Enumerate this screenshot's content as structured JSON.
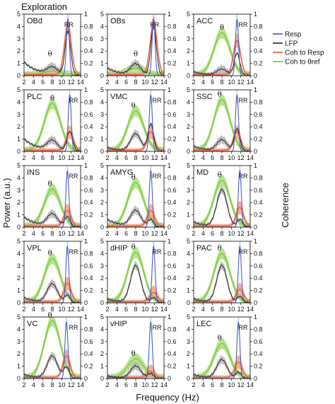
{
  "figure_title": "Exploration",
  "x_label": "Frequency (Hz)",
  "y_left_label": "Power (a.u.)",
  "y_right_label": "Coherence",
  "legend": [
    "Resp",
    "LFP",
    "Coh to Resp",
    "Coh to θref"
  ],
  "colors": {
    "resp": "#3f51c8",
    "lfp": "#222222",
    "lfp_band": "#b0b0b0",
    "coh_resp": "#e8552e",
    "coh_resp_band": "#f4a082",
    "coh_theta": "#6cc321",
    "coh_theta_band": "#b6e38e",
    "resp_band": "#a9b8e8"
  },
  "labels": {
    "theta": "θ",
    "rr": "RR"
  },
  "chart_data": {
    "type": "line",
    "xlim": [
      2,
      14
    ],
    "x_ticks": [
      "2",
      "4",
      "6",
      "8",
      "10",
      "12",
      "14"
    ],
    "power_ylim": [
      0,
      5
    ],
    "power_ticks": [
      "0",
      "1",
      "2",
      "3",
      "4",
      "5"
    ],
    "coherence_ylim": [
      0,
      1
    ],
    "coherence_ticks": [
      "0",
      "0.2",
      "0.4",
      "0.6",
      "0.8",
      "1"
    ],
    "panels": [
      {
        "name": "OBd",
        "resp_peak": 11.3,
        "lfp_theta": 0.6,
        "lfp_rr": 3.5,
        "coh_resp": 0.8,
        "coh_theta": 0.05,
        "theta_x": 7.5,
        "rr_x": 11.5,
        "lfp_low": 1.1
      },
      {
        "name": "OBs",
        "resp_peak": 11.8,
        "lfp_theta": 0.9,
        "lfp_rr": 3.9,
        "coh_resp": 0.85,
        "coh_theta": 0.1,
        "theta_x": 8,
        "rr_x": 12,
        "lfp_low": 0.6
      },
      {
        "name": "ACC",
        "resp_peak": 11.2,
        "lfp_theta": 0.5,
        "lfp_rr": 1.8,
        "coh_resp": 0.55,
        "coh_theta": 0.68,
        "theta_x": 8,
        "rr_x": 12.5,
        "lfp_low": 0.3
      },
      {
        "name": "PLC",
        "resp_peak": 11.7,
        "lfp_theta": 0.8,
        "lfp_rr": 1.6,
        "coh_resp": 0.3,
        "coh_theta": 0.76,
        "theta_x": 8,
        "rr_x": 12.5,
        "lfp_low": 1.0
      },
      {
        "name": "VMC",
        "resp_peak": 11.2,
        "lfp_theta": 1.4,
        "lfp_rr": 2.2,
        "coh_resp": 0.3,
        "coh_theta": 0.64,
        "theta_x": 7.5,
        "rr_x": 12.5,
        "lfp_low": 0.3
      },
      {
        "name": "SSC",
        "resp_peak": 11.2,
        "lfp_theta": 0.9,
        "lfp_rr": 1.8,
        "coh_resp": 0.3,
        "coh_theta": 0.82,
        "theta_x": 7.5,
        "rr_x": 12.5,
        "lfp_low": 0.4
      },
      {
        "name": "INS",
        "resp_peak": 11.2,
        "lfp_theta": 1.0,
        "lfp_rr": 0.8,
        "coh_resp": 0.25,
        "coh_theta": 0.6,
        "theta_x": 7.5,
        "rr_x": 12.5,
        "lfp_low": 0.8
      },
      {
        "name": "AMYG",
        "resp_peak": 11.2,
        "lfp_theta": 1.3,
        "lfp_rr": 0.6,
        "coh_resp": 0.25,
        "coh_theta": 0.7,
        "theta_x": 7.5,
        "rr_x": 12.5,
        "lfp_low": 0.6
      },
      {
        "name": "MD",
        "resp_peak": 11.8,
        "lfp_theta": 3.0,
        "lfp_rr": 0.6,
        "coh_resp": 0.3,
        "coh_theta": 0.74,
        "theta_x": 7.5,
        "rr_x": 12.5,
        "lfp_low": 0.4
      },
      {
        "name": "VPL",
        "resp_peak": 11.2,
        "lfp_theta": 1.5,
        "lfp_rr": 0.6,
        "coh_resp": 0.3,
        "coh_theta": 0.7,
        "theta_x": 7.5,
        "rr_x": 12.5,
        "lfp_low": 0.4
      },
      {
        "name": "dHIP",
        "resp_peak": 11.8,
        "lfp_theta": 3.0,
        "lfp_rr": 0.4,
        "coh_resp": 0.15,
        "coh_theta": 0.8,
        "theta_x": 7.5,
        "rr_x": 12.5,
        "lfp_low": 0.3
      },
      {
        "name": "PAC",
        "resp_peak": 11.8,
        "lfp_theta": 3.0,
        "lfp_rr": 0.5,
        "coh_resp": 0.2,
        "coh_theta": 0.78,
        "theta_x": 7.5,
        "rr_x": 12.5,
        "lfp_low": 0.3
      },
      {
        "name": "VC",
        "resp_peak": 11.0,
        "lfp_theta": 1.8,
        "lfp_rr": 0.9,
        "coh_resp": 0.35,
        "coh_theta": 0.92,
        "theta_x": 7.5,
        "rr_x": 12.5,
        "lfp_low": 0.3
      },
      {
        "name": "vHIP",
        "resp_peak": 11.2,
        "lfp_theta": 1.0,
        "lfp_rr": 0.4,
        "coh_resp": 0.1,
        "coh_theta": 0.3,
        "theta_x": 7.5,
        "rr_x": 12.5,
        "lfp_low": 0.2
      },
      {
        "name": "LEC",
        "resp_peak": 11.5,
        "lfp_theta": 1.5,
        "lfp_rr": 0.5,
        "coh_resp": 0.25,
        "coh_theta": 0.55,
        "theta_x": 7.5,
        "rr_x": 12.5,
        "lfp_low": 0.3
      }
    ]
  }
}
